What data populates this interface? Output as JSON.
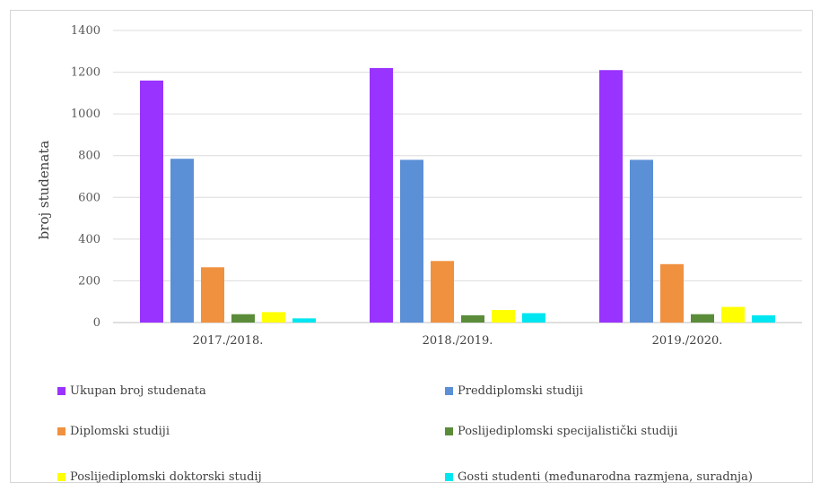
{
  "chart_data": {
    "type": "bar",
    "categories": [
      "2017./2018.",
      "2018./2019.",
      "2019./2020."
    ],
    "ylabel": "broj studenata",
    "ylim": [
      0,
      1400
    ],
    "yticks": [
      0,
      200,
      400,
      600,
      800,
      1000,
      1200,
      1400
    ],
    "grid": true,
    "legend_position": "bottom",
    "series": [
      {
        "name": "Ukupan broj studenata",
        "color": "#9933ff",
        "values": [
          1160,
          1220,
          1210
        ]
      },
      {
        "name": "Preddiplomski studiji",
        "color": "#5b8fd6",
        "values": [
          785,
          780,
          780
        ]
      },
      {
        "name": "Diplomski studiji",
        "color": "#f0913f",
        "values": [
          265,
          295,
          280
        ]
      },
      {
        "name": "Poslijediplomski specijalistički studiji",
        "color": "#5a8c3a",
        "values": [
          40,
          35,
          40
        ]
      },
      {
        "name": "Poslijediplomski doktorski studij",
        "color": "#ffff00",
        "values": [
          50,
          60,
          75
        ]
      },
      {
        "name": "Gosti studenti (međunarodna razmjena, suradnja)",
        "color": "#00e6f0",
        "values": [
          20,
          45,
          35
        ]
      }
    ]
  }
}
